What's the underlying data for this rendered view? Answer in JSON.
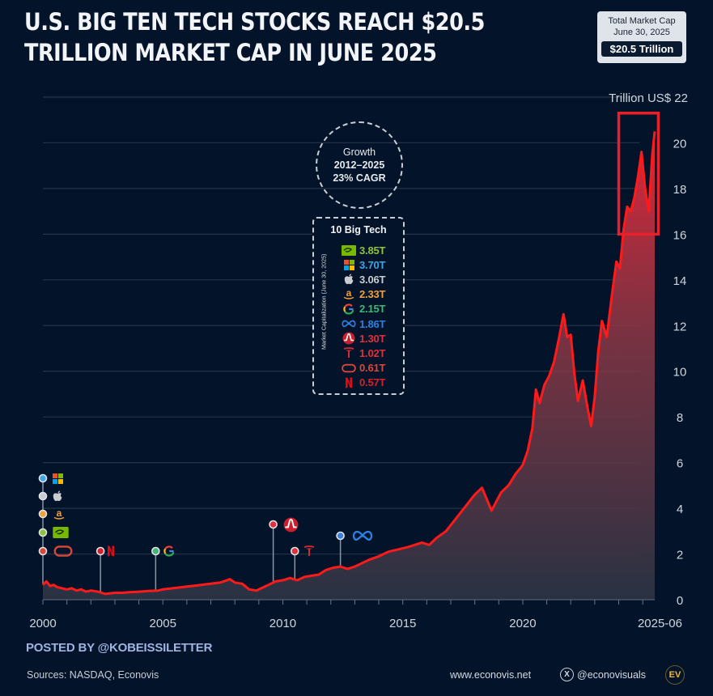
{
  "header": {
    "title_line1": "U.S. BIG TEN TECH STOCKS REACH $20.5",
    "title_line2": "TRILLION MARKET CAP IN JUNE 2025"
  },
  "market_cap_box": {
    "label_line1": "Total Market Cap",
    "label_line2": "June 30, 2025",
    "value": "$20.5 Trillion"
  },
  "growth_badge": {
    "line1": "Growth",
    "line2": "2012–2025",
    "line3": "23% CAGR"
  },
  "legend": {
    "title": "10 Big Tech",
    "side_label": "Market Capitalization (June 30, 2025)",
    "items": [
      {
        "company": "Nvidia",
        "icon": "nvidia-icon",
        "value": "3.85T",
        "color": "#8fc33a"
      },
      {
        "company": "Microsoft",
        "icon": "microsoft-icon",
        "value": "3.70T",
        "color": "#3ea5e8"
      },
      {
        "company": "Apple",
        "icon": "apple-icon",
        "value": "3.06T",
        "color": "#c9ccd1"
      },
      {
        "company": "Amazon",
        "icon": "amazon-icon",
        "value": "2.33T",
        "color": "#f2a23a"
      },
      {
        "company": "Alphabet",
        "icon": "google-icon",
        "value": "2.15T",
        "color": "#3fb870"
      },
      {
        "company": "Meta",
        "icon": "meta-icon",
        "value": "1.86T",
        "color": "#2f7fe0"
      },
      {
        "company": "Broadcom",
        "icon": "broadcom-icon",
        "value": "1.30T",
        "color": "#e0303a"
      },
      {
        "company": "Tesla",
        "icon": "tesla-icon",
        "value": "1.02T",
        "color": "#e0303a"
      },
      {
        "company": "Oracle",
        "icon": "oracle-icon",
        "value": "0.61T",
        "color": "#d8483a"
      },
      {
        "company": "Netflix",
        "icon": "netflix-icon",
        "value": "0.57T",
        "color": "#d8202a"
      }
    ]
  },
  "footer": {
    "posted_by": "POSTED BY @KOBEISSILETTER",
    "sources": "Sources: NASDAQ, Econovis",
    "website": "www.econovis.net",
    "social_icon": "x-icon",
    "social_x_glyph": "X",
    "social_handle": "@econovisuals",
    "logo_text": "EV"
  },
  "colors": {
    "background": "#03142a",
    "line": "#ff1a1a",
    "highlight_box": "#e8202a",
    "grid": "#2a3648"
  },
  "chart_data": {
    "type": "area",
    "title": "U.S. Big Ten Tech Stocks Reach $20.5 Trillion Market Cap in June 2025",
    "xlabel": "",
    "ylabel": "Trillion US$",
    "y_unit_label": "Trillion US$",
    "xlim": [
      2000,
      2025.5
    ],
    "ylim": [
      0,
      22
    ],
    "x_ticks": [
      2000,
      2005,
      2010,
      2015,
      2020,
      2025.5
    ],
    "x_tick_labels": [
      "2000",
      "2005",
      "2010",
      "2015",
      "2020",
      "2025-06"
    ],
    "y_ticks": [
      0,
      2,
      4,
      6,
      8,
      10,
      12,
      14,
      16,
      18,
      20,
      22
    ],
    "y_tick_labels": [
      "0",
      "2",
      "4",
      "6",
      "8",
      "10",
      "12",
      "14",
      "16",
      "18",
      "20",
      "22"
    ],
    "grid": true,
    "y_axis_side": "right",
    "series": [
      {
        "name": "Big Ten Tech total market cap",
        "x": [
          2000.0,
          2000.15,
          2000.3,
          2000.45,
          2000.6,
          2000.8,
          2001.0,
          2001.2,
          2001.4,
          2001.6,
          2001.8,
          2002.0,
          2002.3,
          2002.6,
          2002.8,
          2003.0,
          2003.3,
          2003.6,
          2004.0,
          2004.4,
          2004.8,
          2005.0,
          2005.4,
          2005.8,
          2006.2,
          2006.6,
          2007.0,
          2007.4,
          2007.8,
          2008.0,
          2008.3,
          2008.6,
          2008.9,
          2009.1,
          2009.4,
          2009.7,
          2010.0,
          2010.3,
          2010.6,
          2010.9,
          2011.2,
          2011.5,
          2011.8,
          2012.1,
          2012.4,
          2012.7,
          2013.0,
          2013.3,
          2013.6,
          2014.0,
          2014.4,
          2014.8,
          2015.2,
          2015.5,
          2015.8,
          2016.1,
          2016.4,
          2016.8,
          2017.1,
          2017.4,
          2017.7,
          2018.0,
          2018.3,
          2018.7,
          2018.9,
          2019.1,
          2019.4,
          2019.7,
          2020.0,
          2020.2,
          2020.4,
          2020.55,
          2020.7,
          2020.9,
          2021.1,
          2021.3,
          2021.5,
          2021.7,
          2021.85,
          2022.0,
          2022.15,
          2022.3,
          2022.5,
          2022.7,
          2022.85,
          2023.0,
          2023.15,
          2023.3,
          2023.5,
          2023.7,
          2023.9,
          2024.05,
          2024.2,
          2024.35,
          2024.5,
          2024.65,
          2024.8,
          2024.95,
          2025.1,
          2025.25,
          2025.4,
          2025.5
        ],
        "values": [
          0.65,
          0.8,
          0.6,
          0.65,
          0.55,
          0.5,
          0.45,
          0.5,
          0.4,
          0.45,
          0.35,
          0.4,
          0.35,
          0.25,
          0.28,
          0.3,
          0.3,
          0.33,
          0.35,
          0.38,
          0.4,
          0.45,
          0.5,
          0.55,
          0.6,
          0.65,
          0.7,
          0.75,
          0.9,
          0.75,
          0.7,
          0.45,
          0.4,
          0.5,
          0.65,
          0.8,
          0.85,
          0.95,
          0.85,
          1.0,
          1.05,
          1.1,
          1.3,
          1.4,
          1.45,
          1.35,
          1.45,
          1.6,
          1.75,
          1.9,
          2.1,
          2.2,
          2.3,
          2.4,
          2.5,
          2.4,
          2.7,
          3.0,
          3.4,
          3.8,
          4.2,
          4.6,
          4.9,
          3.9,
          4.3,
          4.7,
          5.0,
          5.5,
          5.9,
          6.5,
          7.5,
          9.2,
          8.6,
          9.4,
          9.8,
          10.4,
          11.4,
          12.5,
          11.5,
          11.6,
          9.9,
          8.7,
          9.6,
          8.4,
          7.6,
          8.9,
          10.9,
          12.2,
          11.5,
          13.2,
          14.8,
          14.5,
          16.2,
          17.2,
          17.0,
          17.6,
          18.5,
          19.6,
          18.0,
          17.0,
          19.5,
          20.5
        ]
      }
    ],
    "annotations": [
      {
        "type": "highlight-box",
        "x_range": [
          2024.0,
          2025.65
        ],
        "y_range": [
          16,
          21.3
        ],
        "note": "2024-2025 surge"
      },
      {
        "type": "entry-marker",
        "company": "Microsoft",
        "x": 2000,
        "color": "#3ea5e8"
      },
      {
        "type": "entry-marker",
        "company": "Apple",
        "x": 2000,
        "color": "#c9ccd1"
      },
      {
        "type": "entry-marker",
        "company": "Amazon",
        "x": 2000,
        "color": "#f2a23a"
      },
      {
        "type": "entry-marker",
        "company": "Nvidia",
        "x": 2000,
        "color": "#8fc33a"
      },
      {
        "type": "entry-marker",
        "company": "Oracle",
        "x": 2000,
        "color": "#d8483a"
      },
      {
        "type": "entry-marker",
        "company": "Netflix",
        "x": 2002.4,
        "color": "#d8202a"
      },
      {
        "type": "entry-marker",
        "company": "Alphabet",
        "x": 2004.7,
        "color": "#3fb870"
      },
      {
        "type": "entry-marker",
        "company": "Broadcom",
        "x": 2009.6,
        "color": "#e0303a"
      },
      {
        "type": "entry-marker",
        "company": "Tesla",
        "x": 2010.5,
        "color": "#e0303a"
      },
      {
        "type": "entry-marker",
        "company": "Meta",
        "x": 2012.4,
        "color": "#3a7fe0"
      }
    ]
  }
}
